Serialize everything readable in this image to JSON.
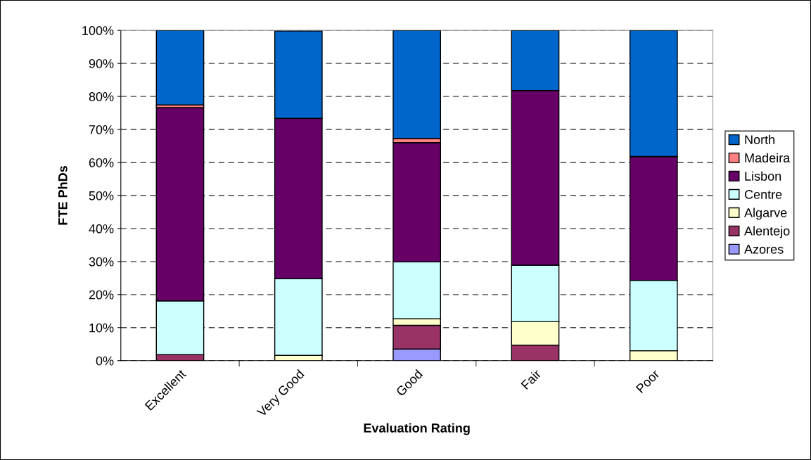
{
  "chart_data": {
    "type": "bar",
    "stacked": true,
    "xlabel": "Evaluation Rating",
    "ylabel": "FTE PhDs",
    "categories": [
      "Excellent",
      "Very Good",
      "Good",
      "Fair",
      "Poor"
    ],
    "series": [
      {
        "name": "Azores",
        "color": "#9999ff",
        "values": [
          0,
          0,
          3.5,
          0,
          0
        ]
      },
      {
        "name": "Alentejo",
        "color": "#993366",
        "values": [
          1.8,
          null,
          7.2,
          4.7,
          0
        ]
      },
      {
        "name": "Algarve",
        "color": "#ffffcc",
        "values": [
          0,
          1.6,
          2.0,
          7.1,
          3.0
        ]
      },
      {
        "name": "Centre",
        "color": "#ccffff",
        "values": [
          16.3,
          23.2,
          17.2,
          17.1,
          21.3
        ]
      },
      {
        "name": "Lisbon",
        "color": "#660066",
        "values": [
          58.5,
          48.6,
          36.1,
          52.9,
          37.5
        ]
      },
      {
        "name": "Madeira",
        "color": "#ff8080",
        "values": [
          0.8,
          0,
          1.3,
          0,
          0
        ]
      },
      {
        "name": "North",
        "color": "#0066cc",
        "values": [
          22.6,
          26.4,
          32.7,
          18.2,
          38.2
        ]
      }
    ],
    "ylim": [
      0,
      100
    ],
    "yticks": [
      {
        "value": 0,
        "label": "0%"
      },
      {
        "value": 10,
        "label": "10%"
      },
      {
        "value": 20,
        "label": "20%"
      },
      {
        "value": 30,
        "label": "30%"
      },
      {
        "value": 40,
        "label": "40%"
      },
      {
        "value": 50,
        "label": "50%"
      },
      {
        "value": 60,
        "label": "60%"
      },
      {
        "value": 70,
        "label": "70%"
      },
      {
        "value": 80,
        "label": "80%"
      },
      {
        "value": 90,
        "label": "90%"
      },
      {
        "value": 100,
        "label": "100%"
      }
    ],
    "grid": "y",
    "legend": "right"
  }
}
